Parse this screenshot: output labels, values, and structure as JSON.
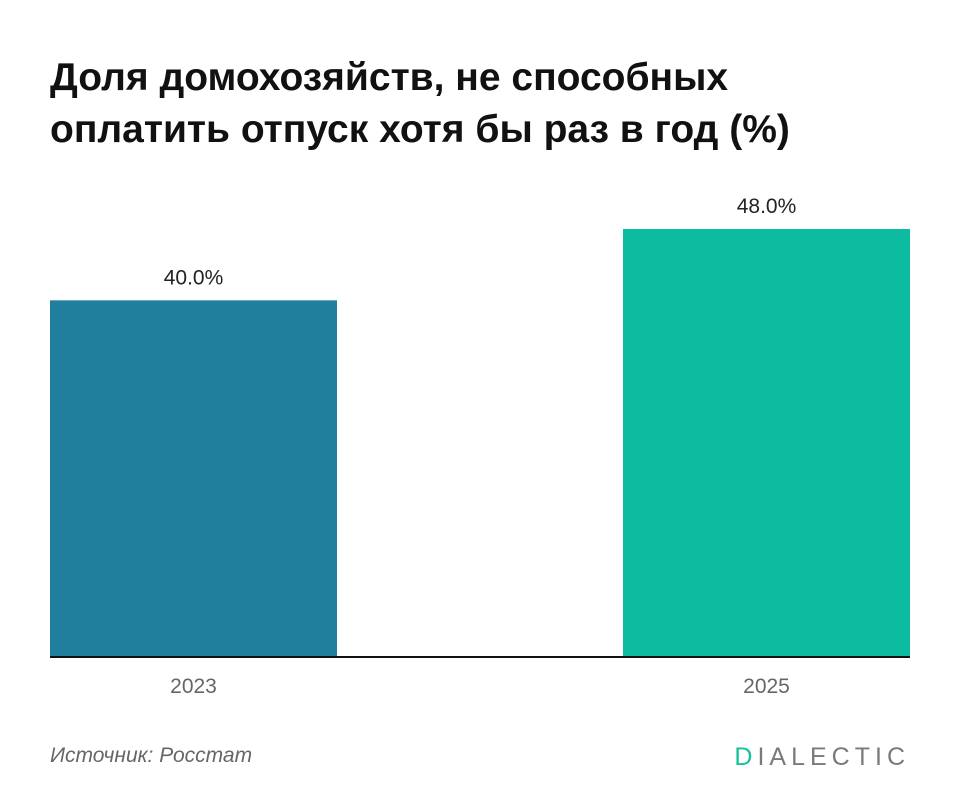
{
  "chart_data": {
    "type": "bar",
    "title_lines": [
      "Доля домохозяйств, не способных",
      "оплатить отпуск хотя бы раз в год (%)"
    ],
    "categories": [
      "2023",
      "2025"
    ],
    "values": [
      40.0,
      48.0
    ],
    "value_labels": [
      "40.0%",
      "48.0%"
    ],
    "ylim": [
      0,
      48
    ],
    "xlabel": "",
    "ylabel": "",
    "grid": false,
    "bar_colors": [
      "#1f7f9d",
      "#0dbba0"
    ]
  },
  "footer": {
    "source": "Источник: Росстат",
    "brand_first": "D",
    "brand_rest": "IALECTIC"
  },
  "colors": {
    "brand_accent": "#14c29a",
    "baseline": "#111111"
  }
}
